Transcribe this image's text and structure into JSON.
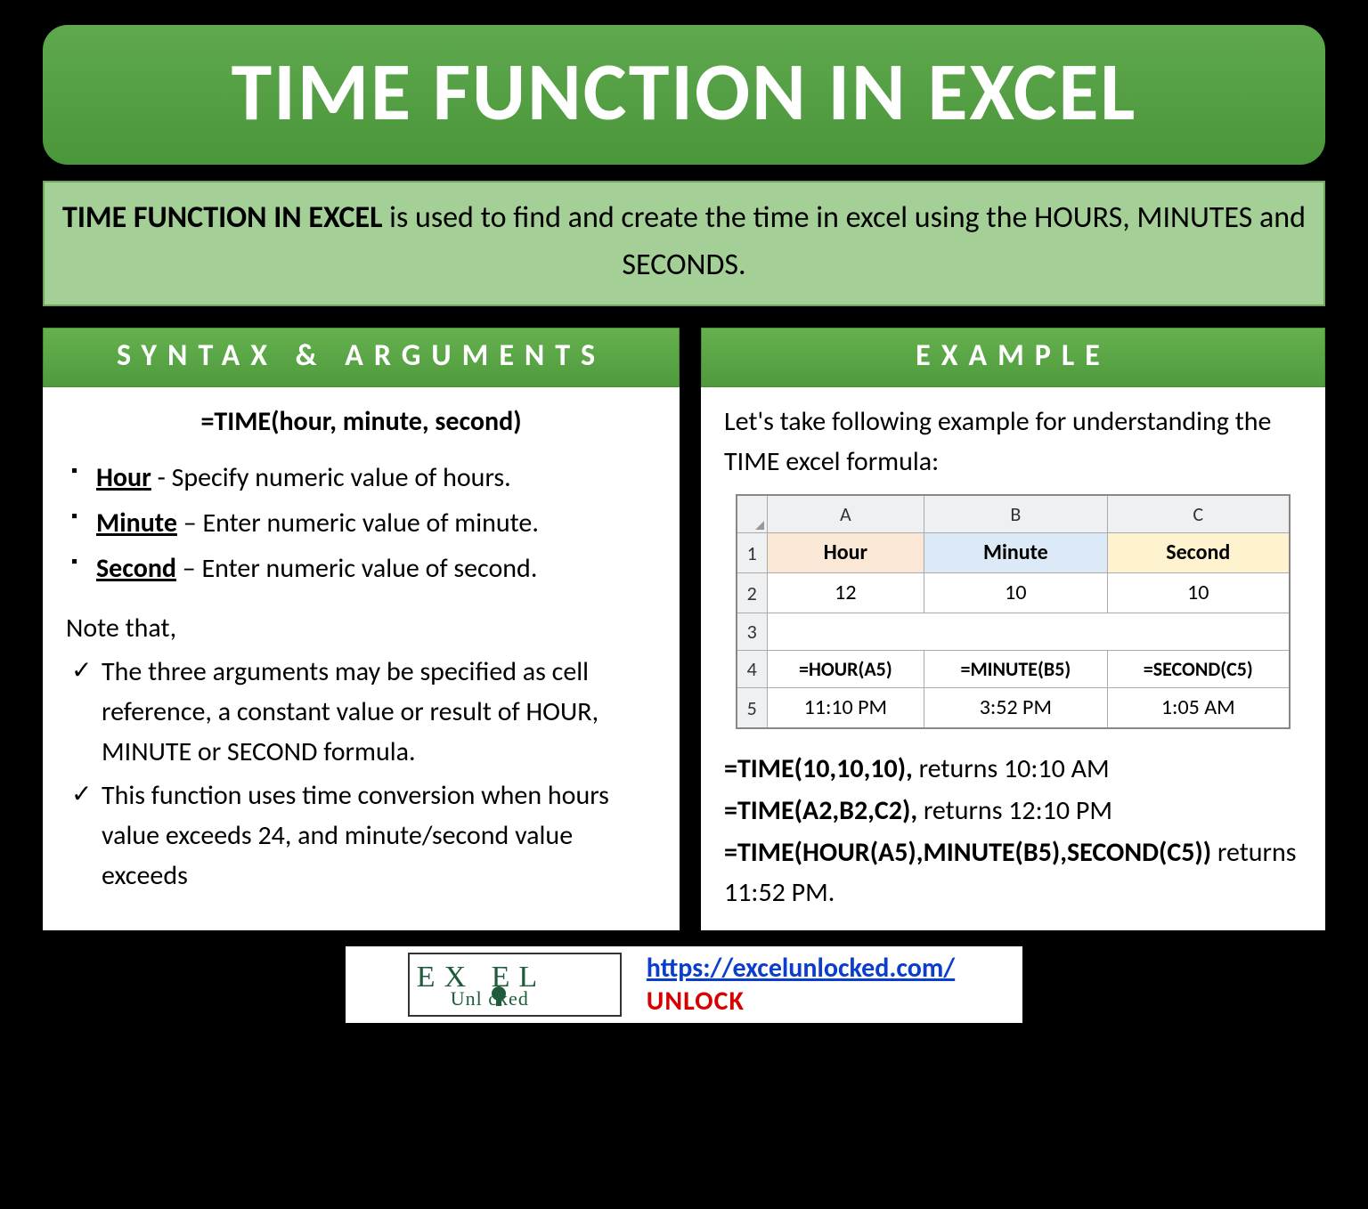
{
  "title": "TIME FUNCTION IN EXCEL",
  "description": {
    "bold_lead": "TIME FUNCTION IN EXCEL",
    "rest": " is used to find and create the time in excel using the HOURS, MINUTES and SECONDS."
  },
  "syntax": {
    "header": "SYNTAX & ARGUMENTS",
    "formula": "=TIME(hour, minute, second)",
    "args": [
      {
        "name": "Hour",
        "sep": " - ",
        "desc": "Specify numeric value of hours."
      },
      {
        "name": "Minute",
        "sep": " – ",
        "desc": "Enter numeric value of minute."
      },
      {
        "name": "Second",
        "sep": " – ",
        "desc": "Enter numeric value of second."
      }
    ],
    "note_label": "Note that,",
    "notes": [
      "The three arguments may be specified as cell reference, a constant value or result of HOUR, MINUTE or SECOND formula.",
      "This function uses time conversion when hours value exceeds 24, and minute/second value exceeds"
    ]
  },
  "example": {
    "header": "EXAMPLE",
    "intro": "Let's take following example for understanding the TIME excel formula:",
    "table": {
      "col_letters": [
        "A",
        "B",
        "C"
      ],
      "row_numbers": [
        "1",
        "2",
        "3",
        "4",
        "5"
      ],
      "header_row": [
        "Hour",
        "Minute",
        "Second"
      ],
      "header_colors": [
        "#fbe7d6",
        "#dceaf7",
        "#fff3cf"
      ],
      "data_row": [
        "12",
        "10",
        "10"
      ],
      "formula_row": [
        "=HOUR(A5)",
        "=MINUTE(B5)",
        "=SECOND(C5)"
      ],
      "value_row": [
        "11:10 PM",
        "3:52 PM",
        "1:05 AM"
      ]
    },
    "results": [
      {
        "bold": "=TIME(10,10,10),",
        "rest": " returns 10:10 AM"
      },
      {
        "bold": "=TIME(A2,B2,C2),",
        "rest": " returns 12:10 PM"
      },
      {
        "bold": "=TIME(HOUR(A5),MINUTE(B5),SECOND(C5))",
        "rest": " returns 11:52 PM."
      }
    ]
  },
  "footer": {
    "logo_top": "EX   EL",
    "logo_bottom": "Unl   cked",
    "url": "https://excelunlocked.com/",
    "unlock": "UNLOCK"
  },
  "colors": {
    "title_bg_top": "#5fa84e",
    "title_bg_bottom": "#4a963a",
    "desc_bg": "#a4cf96",
    "desc_border": "#6fa85c",
    "section_hdr_top": "#66b04f",
    "section_hdr_bottom": "#4f9b3c",
    "link": "#0b3ecb",
    "unlock": "#d60000",
    "logo_text": "#1e5c3c"
  }
}
